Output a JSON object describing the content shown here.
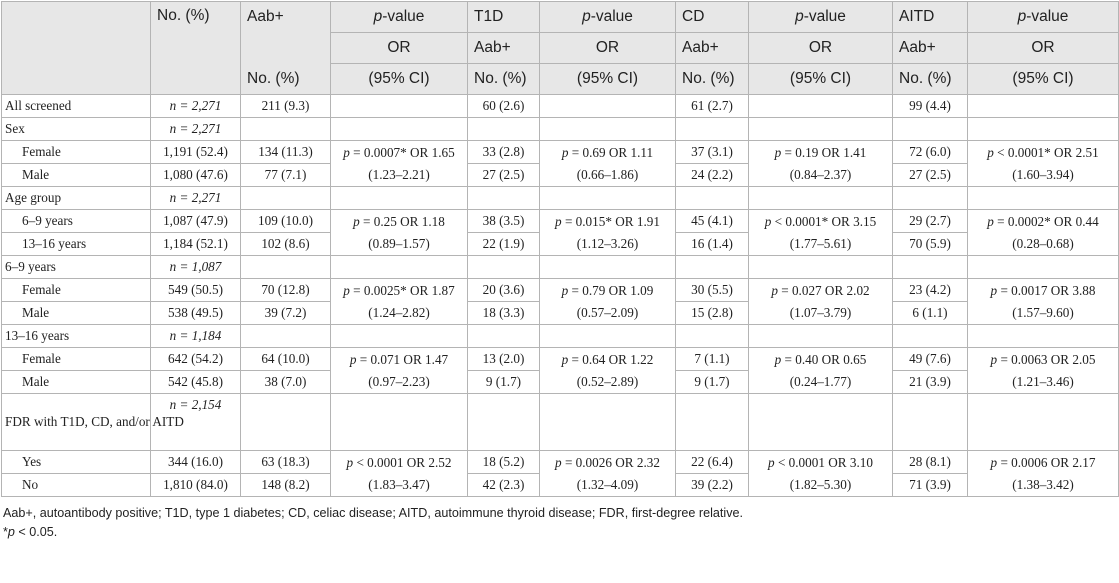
{
  "header": {
    "col_no": "No. (%)",
    "col_aab": "Aab+",
    "col_pvalue_word": "p",
    "col_pvalue_rest": "-value",
    "col_t1d": "T1D",
    "col_cd": "CD",
    "col_aitd": "AITD",
    "or_label": "OR",
    "aabplus_label": "Aab+",
    "no_pct_label": "No. (%)",
    "ci_label": "(95% CI)"
  },
  "rows": [
    {
      "type": "data",
      "label": "All screened",
      "indent": false,
      "n": "n = 2,271",
      "aab": "211 (9.3)",
      "t1d": "60 (2.6)",
      "cd": "61 (2.7)",
      "aitd": "99 (4.4)"
    },
    {
      "type": "section",
      "label": "Sex",
      "n": "n = 2,271"
    },
    {
      "type": "pair",
      "a": {
        "label": "Female",
        "no": "1,191 (52.4)",
        "aab": "134 (11.3)",
        "t1d": "33 (2.8)",
        "cd": "37 (3.1)",
        "aitd": "72 (6.0)"
      },
      "b": {
        "label": "Male",
        "no": "1,080 (47.6)",
        "aab": "77 (7.1)",
        "t1d": "27 (2.5)",
        "cd": "24 (2.2)",
        "aitd": "27 (2.5)"
      },
      "aab_stat": {
        "p": "p",
        "rest": " = 0.0007* OR 1.65",
        "ci": "(1.23–2.21)"
      },
      "t1d_stat": {
        "p": "p",
        "rest": " = 0.69 OR 1.11",
        "ci": "(0.66–1.86)"
      },
      "cd_stat": {
        "p": "p",
        "rest": " = 0.19 OR 1.41",
        "ci": "(0.84–2.37)"
      },
      "aitd_stat": {
        "p": "p",
        "rest": " < 0.0001* OR 2.51",
        "ci": "(1.60–3.94)"
      }
    },
    {
      "type": "section",
      "label": "Age group",
      "n": "n = 2,271"
    },
    {
      "type": "pair",
      "a": {
        "label": "6–9 years",
        "no": "1,087 (47.9)",
        "aab": "109 (10.0)",
        "t1d": "38 (3.5)",
        "cd": "45 (4.1)",
        "aitd": "29 (2.7)"
      },
      "b": {
        "label": "13–16 years",
        "no": "1,184 (52.1)",
        "aab": "102 (8.6)",
        "t1d": "22 (1.9)",
        "cd": "16 (1.4)",
        "aitd": "70 (5.9)"
      },
      "aab_stat": {
        "p": "p",
        "rest": " = 0.25 OR 1.18",
        "ci": "(0.89–1.57)"
      },
      "t1d_stat": {
        "p": "p",
        "rest": " = 0.015* OR 1.91",
        "ci": "(1.12–3.26)"
      },
      "cd_stat": {
        "p": "p",
        "rest": " < 0.0001* OR 3.15",
        "ci": "(1.77–5.61)"
      },
      "aitd_stat": {
        "p": "p",
        "rest": " = 0.0002* OR 0.44",
        "ci": "(0.28–0.68)"
      }
    },
    {
      "type": "section",
      "label": "6–9 years",
      "n": "n = 1,087"
    },
    {
      "type": "pair",
      "a": {
        "label": "Female",
        "no": "549 (50.5)",
        "aab": "70 (12.8)",
        "t1d": "20 (3.6)",
        "cd": "30 (5.5)",
        "aitd": "23 (4.2)"
      },
      "b": {
        "label": "Male",
        "no": "538 (49.5)",
        "aab": "39 (7.2)",
        "t1d": "18 (3.3)",
        "cd": "15 (2.8)",
        "aitd": "6 (1.1)"
      },
      "aab_stat": {
        "p": "p",
        "rest": " = 0.0025* OR 1.87",
        "ci": "(1.24–2.82)"
      },
      "t1d_stat": {
        "p": "p",
        "rest": " = 0.79 OR 1.09",
        "ci": "(0.57–2.09)"
      },
      "cd_stat": {
        "p": "p",
        "rest": " = 0.027 OR 2.02",
        "ci": "(1.07–3.79)"
      },
      "aitd_stat": {
        "p": "p",
        "rest": " = 0.0017 OR 3.88",
        "ci": "(1.57–9.60)"
      }
    },
    {
      "type": "section",
      "label": "13–16 years",
      "n": "n = 1,184"
    },
    {
      "type": "pair",
      "a": {
        "label": "Female",
        "no": "642 (54.2)",
        "aab": "64 (10.0)",
        "t1d": "13 (2.0)",
        "cd": "7 (1.1)",
        "aitd": "49 (7.6)"
      },
      "b": {
        "label": "Male",
        "no": "542 (45.8)",
        "aab": "38 (7.0)",
        "t1d": "9 (1.7)",
        "cd": "9 (1.7)",
        "aitd": "21 (3.9)"
      },
      "aab_stat": {
        "p": "p",
        "rest": " = 0.071 OR 1.47",
        "ci": "(0.97–2.23)"
      },
      "t1d_stat": {
        "p": "p",
        "rest": " = 0.64 OR 1.22",
        "ci": "(0.52–2.89)"
      },
      "cd_stat": {
        "p": "p",
        "rest": " = 0.40 OR 0.65",
        "ci": "(0.24–1.77)"
      },
      "aitd_stat": {
        "p": "p",
        "rest": " = 0.0063 OR 2.05",
        "ci": "(1.21–3.46)"
      }
    },
    {
      "type": "section_tall",
      "label": "FDR with T1D, CD, and/or AITD",
      "n": "n = 2,154"
    },
    {
      "type": "pair",
      "a": {
        "label": "Yes",
        "no": "344 (16.0)",
        "aab": "63 (18.3)",
        "t1d": "18 (5.2)",
        "cd": "22 (6.4)",
        "aitd": "28 (8.1)"
      },
      "b": {
        "label": "No",
        "no": "1,810 (84.0)",
        "aab": "148 (8.2)",
        "t1d": "42 (2.3)",
        "cd": "39 (2.2)",
        "aitd": "71 (3.9)"
      },
      "aab_stat": {
        "p": "p",
        "rest": " < 0.0001 OR 2.52",
        "ci": "(1.83–3.47)"
      },
      "t1d_stat": {
        "p": "p",
        "rest": " = 0.0026 OR 2.32",
        "ci": "(1.32–4.09)"
      },
      "cd_stat": {
        "p": "p",
        "rest": " < 0.0001 OR 3.10",
        "ci": "(1.82–5.30)"
      },
      "aitd_stat": {
        "p": "p",
        "rest": " = 0.0006 OR 2.17",
        "ci": "(1.38–3.42)"
      }
    }
  ],
  "footnotes": {
    "abbrev": "Aab+, autoantibody positive; T1D, type 1 diabetes; CD, celiac disease; AITD, autoimmune thyroid disease; FDR, first-degree relative.",
    "sig_star": "*",
    "sig_p": "p",
    "sig_rest": " < 0.05."
  }
}
